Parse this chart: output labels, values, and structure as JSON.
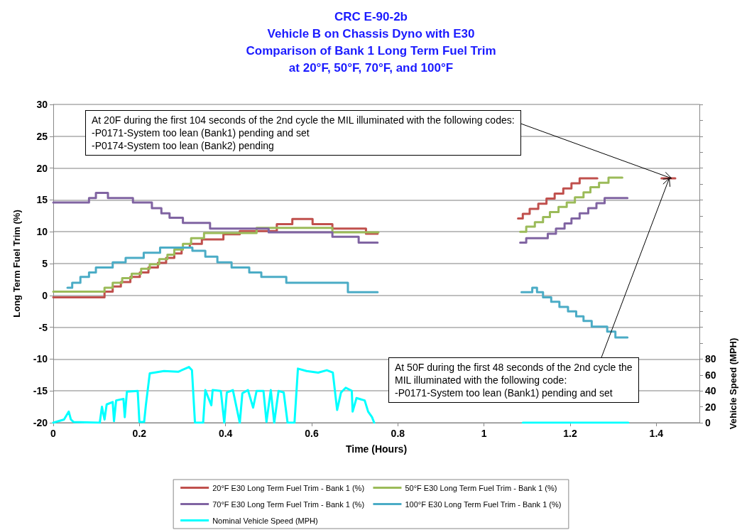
{
  "chart_data": {
    "type": "step",
    "title": "CRC E-90-2b\nVehicle B on Chassis Dyno with E30\nComparison of Bank 1 Long Term Fuel Trim\nat 20°F, 50°F, 70°F, and 100°F",
    "xlabel": "Time (Hours)",
    "ylabel": "Long Term Fuel Trim (%)",
    "y2label": "Vehicle Speed (MPH)",
    "xlim": [
      0,
      1.5
    ],
    "xticks": [
      0,
      0.2,
      0.4,
      0.6,
      0.8,
      1,
      1.2,
      1.4
    ],
    "ylim": [
      -20,
      30
    ],
    "yticks": [
      -20,
      -15,
      -10,
      -5,
      0,
      5,
      10,
      15,
      20,
      25,
      30
    ],
    "y2lim": [
      0,
      400
    ],
    "y2ticks": [
      0,
      20,
      40,
      60,
      80,
      {
        "value": 100,
        "label": null
      },
      {
        "value": 120,
        "label": null
      },
      {
        "value": 140,
        "label": null
      },
      {
        "value": 160,
        "label": null
      },
      {
        "value": 180,
        "label": null
      },
      {
        "value": 200,
        "label": null
      },
      {
        "value": 220,
        "label": null
      },
      {
        "value": 240,
        "label": null
      },
      {
        "value": 260,
        "label": null
      },
      {
        "value": 280,
        "label": null
      },
      {
        "value": 300,
        "label": null
      },
      {
        "value": 320,
        "label": null
      },
      {
        "value": 340,
        "label": null
      },
      {
        "value": 360,
        "label": null
      },
      {
        "value": 380,
        "label": null
      },
      {
        "value": 400,
        "label": null
      }
    ],
    "grid": "y",
    "legend": "bottom",
    "series": [
      {
        "name": "20°F E30 Long Term Fuel Trim - Bank 1 (%)",
        "color": "#c0504d",
        "x": [
          0,
          0.119,
          0.138,
          0.157,
          0.179,
          0.201,
          0.221,
          0.243,
          0.262,
          0.281,
          0.298,
          0.317,
          0.345,
          0.395,
          0.433,
          0.519,
          0.555,
          0.602,
          0.648,
          0.726,
          0.753,
          null,
          1.079,
          1.09,
          1.106,
          1.126,
          1.145,
          1.164,
          1.184,
          1.203,
          1.222,
          1.263,
          null,
          1.412,
          1.444
        ],
        "values": [
          -0.3,
          0.6,
          1.4,
          2.1,
          2.9,
          3.6,
          4.4,
          5.1,
          5.9,
          6.6,
          7.5,
          8.1,
          8.8,
          9.6,
          10.1,
          11.2,
          12.0,
          11.2,
          10.5,
          9.7,
          9.7,
          null,
          12.1,
          12.8,
          13.6,
          14.4,
          15.2,
          16.0,
          16.8,
          17.6,
          18.4,
          18.4,
          null,
          18.4,
          18.4
        ]
      },
      {
        "name": "50°F E30 Long Term Fuel Trim - Bank 1 (%)",
        "color": "#9bbb59",
        "x": [
          0,
          0.119,
          0.138,
          0.16,
          0.182,
          0.204,
          0.224,
          0.246,
          0.265,
          0.281,
          0.301,
          0.32,
          0.35,
          0.472,
          0.648,
          0.755,
          null,
          1.084,
          1.098,
          1.118,
          1.137,
          1.153,
          1.173,
          1.192,
          1.211,
          1.231,
          1.247,
          1.267,
          1.289,
          1.321
        ],
        "values": [
          0.6,
          1.2,
          2.0,
          2.7,
          3.4,
          4.2,
          4.9,
          5.7,
          6.4,
          7.2,
          8.1,
          9.0,
          9.8,
          10.6,
          9.9,
          9.9,
          null,
          10.0,
          10.8,
          11.5,
          12.3,
          13.1,
          13.9,
          14.6,
          15.4,
          16.2,
          17.0,
          17.7,
          18.5,
          18.5
        ]
      },
      {
        "name": "70°F E30 Long Term Fuel Trim - Bank 1 (%)",
        "color": "#8064a2",
        "x": [
          0,
          0.083,
          0.099,
          0.127,
          0.185,
          0.229,
          0.251,
          0.27,
          0.301,
          0.364,
          0.5,
          0.648,
          0.709,
          0.753,
          null,
          1.084,
          1.098,
          1.148,
          1.167,
          1.187,
          1.203,
          1.222,
          1.242,
          1.261,
          1.28,
          1.333
        ],
        "values": [
          14.6,
          15.3,
          16.1,
          15.3,
          14.6,
          13.7,
          12.9,
          12.2,
          11.4,
          10.5,
          9.9,
          9.2,
          8.3,
          8.3,
          null,
          8.3,
          9.0,
          9.7,
          10.5,
          11.3,
          12.1,
          12.9,
          13.7,
          14.5,
          15.3,
          15.3
        ]
      },
      {
        "name": "100°F E30 Long Term Fuel Trim - Bank 1 (%)",
        "color": "#4bacc6",
        "x": [
          0.033,
          0.044,
          0.063,
          0.083,
          0.099,
          0.138,
          0.168,
          0.21,
          0.248,
          0.323,
          0.353,
          0.381,
          0.414,
          0.455,
          0.483,
          0.541,
          0.684,
          0.753,
          null,
          1.087,
          1.112,
          1.123,
          1.137,
          1.156,
          1.175,
          1.195,
          1.214,
          1.231,
          1.25,
          1.286,
          1.305,
          1.333
        ],
        "values": [
          1.2,
          2.0,
          2.9,
          3.6,
          4.4,
          5.2,
          5.9,
          6.7,
          7.5,
          7.0,
          6.1,
          5.2,
          4.4,
          3.6,
          2.9,
          2.0,
          0.5,
          0.5,
          null,
          0.5,
          1.2,
          0.5,
          -0.3,
          -1.0,
          -1.8,
          -2.5,
          -3.3,
          -4.0,
          -4.9,
          -5.7,
          -6.6,
          -6.6
        ]
      },
      {
        "name": "Nominal Vehicle Speed (MPH)",
        "color": "#00ffff",
        "type": "line",
        "axis": "y2",
        "x": [
          0,
          0.025,
          0.036,
          0.041,
          0.047,
          0.108,
          0.113,
          0.119,
          0.124,
          0.138,
          0.141,
          0.146,
          0.163,
          0.166,
          0.171,
          0.196,
          0.2,
          0.211,
          0.215,
          0.224,
          0.257,
          0.29,
          0.315,
          0.322,
          0.329,
          0.348,
          0.353,
          0.367,
          0.37,
          0.389,
          0.397,
          0.403,
          0.417,
          0.433,
          0.439,
          0.452,
          0.464,
          0.472,
          0.488,
          0.495,
          0.505,
          0.513,
          0.523,
          0.535,
          0.544,
          0.56,
          0.568,
          0.588,
          0.615,
          0.635,
          0.649,
          0.659,
          0.668,
          0.679,
          0.693,
          0.695,
          0.704,
          0.723,
          0.731,
          0.74,
          0.745,
          null,
          1.09,
          1.335
        ],
        "values": [
          0,
          4,
          14,
          4,
          1,
          0,
          20,
          4,
          23,
          26,
          2,
          28,
          30,
          7,
          39,
          40,
          1,
          1,
          22,
          62,
          65,
          64,
          70,
          66,
          0,
          0,
          41,
          22,
          41,
          40,
          0,
          38,
          41,
          0,
          37,
          41,
          19,
          40,
          40,
          1,
          41,
          0,
          40,
          38,
          0,
          0,
          68,
          65,
          63,
          66,
          63,
          16,
          38,
          44,
          40,
          14,
          31,
          28,
          14,
          7,
          0,
          null,
          0,
          0
        ]
      }
    ],
    "annotations": [
      {
        "text": "At 20F during the first 104 seconds of the 2nd cycle the MIL illuminated with the following codes:\n-P0171-System too lean (Bank1) pending and set\n-P0174-System too lean (Bank2) pending",
        "x": 1.435,
        "y": 18.4
      },
      {
        "text": "At 50F during the first 48 seconds of the 2nd cycle the\nMIL illuminated with the following code:\n-P0171-System too lean (Bank1) pending and set",
        "x": 1.43,
        "y": 18.4
      }
    ]
  }
}
